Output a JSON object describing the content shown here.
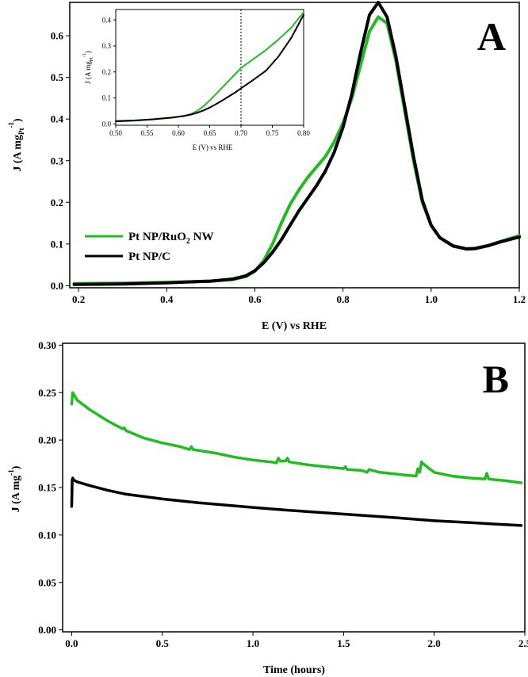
{
  "chart_data": [
    {
      "id": "A",
      "type": "line",
      "panel_label": "A",
      "xlabel": "E (V) vs RHE",
      "ylabel": "J (A mg",
      "ylabel_sub": "Pt",
      "ylabel_sup": "-1",
      "ylabel_close": ")",
      "xlim": [
        0.18,
        1.2
      ],
      "ylim": [
        -0.005,
        0.68
      ],
      "xticks": [
        "0.2",
        "0.4",
        "0.6",
        "0.8",
        "1.0",
        "1.2"
      ],
      "yticks": [
        "0.0",
        "0.1",
        "0.2",
        "0.3",
        "0.4",
        "0.5",
        "0.6"
      ],
      "legend": {
        "position": "left",
        "entries": [
          {
            "label": "Pt NP/RuO",
            "sub": "2",
            "suffix": " NW",
            "color": "#22bb22"
          },
          {
            "label": "Pt NP/C",
            "sub": "",
            "suffix": "",
            "color": "#000000"
          }
        ]
      },
      "series": [
        {
          "name": "Pt NP/RuO2 NW",
          "color": "#22bb22",
          "x": [
            0.19,
            0.3,
            0.4,
            0.5,
            0.55,
            0.58,
            0.6,
            0.62,
            0.64,
            0.66,
            0.68,
            0.7,
            0.72,
            0.74,
            0.76,
            0.78,
            0.8,
            0.82,
            0.84,
            0.86,
            0.88,
            0.9,
            0.92,
            0.94,
            0.96,
            0.98,
            1.0,
            1.02,
            1.05,
            1.08,
            1.1,
            1.13,
            1.16,
            1.2
          ],
          "y": [
            0.005,
            0.006,
            0.008,
            0.011,
            0.015,
            0.022,
            0.035,
            0.06,
            0.1,
            0.15,
            0.195,
            0.23,
            0.26,
            0.285,
            0.31,
            0.345,
            0.39,
            0.45,
            0.53,
            0.61,
            0.645,
            0.63,
            0.54,
            0.42,
            0.3,
            0.2,
            0.145,
            0.115,
            0.096,
            0.089,
            0.09,
            0.097,
            0.107,
            0.12
          ]
        },
        {
          "name": "Pt NP/C",
          "color": "#000000",
          "x": [
            0.19,
            0.3,
            0.4,
            0.5,
            0.55,
            0.58,
            0.6,
            0.62,
            0.64,
            0.66,
            0.68,
            0.7,
            0.72,
            0.74,
            0.76,
            0.78,
            0.8,
            0.82,
            0.84,
            0.86,
            0.88,
            0.9,
            0.92,
            0.94,
            0.96,
            0.98,
            1.0,
            1.02,
            1.05,
            1.08,
            1.1,
            1.13,
            1.16,
            1.2
          ],
          "y": [
            0.003,
            0.004,
            0.007,
            0.011,
            0.016,
            0.024,
            0.036,
            0.055,
            0.08,
            0.11,
            0.145,
            0.18,
            0.21,
            0.24,
            0.275,
            0.32,
            0.38,
            0.46,
            0.56,
            0.65,
            0.68,
            0.645,
            0.55,
            0.43,
            0.31,
            0.205,
            0.145,
            0.115,
            0.095,
            0.088,
            0.089,
            0.096,
            0.106,
            0.117
          ]
        }
      ]
    },
    {
      "id": "A-inset",
      "type": "line",
      "xlabel": "E (V) vs RHE",
      "ylabel": "J (A mg",
      "ylabel_sub": "Pt",
      "ylabel_sup": "-1",
      "ylabel_close": ")",
      "xlim": [
        0.5,
        0.8
      ],
      "ylim": [
        -0.005,
        0.44
      ],
      "xticks": [
        "0.50",
        "0.55",
        "0.60",
        "0.65",
        "0.70",
        "0.75",
        "0.80"
      ],
      "yticks": [
        "0.0",
        "0.1",
        "0.2",
        "0.3",
        "0.4"
      ],
      "vline_x": 0.7,
      "series": [
        {
          "name": "Pt NP/RuO2 NW",
          "color": "#22bb22",
          "x": [
            0.5,
            0.53,
            0.56,
            0.59,
            0.61,
            0.62,
            0.63,
            0.64,
            0.65,
            0.66,
            0.67,
            0.68,
            0.69,
            0.7,
            0.72,
            0.74,
            0.76,
            0.78,
            0.8
          ],
          "y": [
            0.012,
            0.014,
            0.018,
            0.024,
            0.032,
            0.038,
            0.05,
            0.068,
            0.09,
            0.115,
            0.14,
            0.165,
            0.19,
            0.215,
            0.25,
            0.285,
            0.325,
            0.37,
            0.43
          ]
        },
        {
          "name": "Pt NP/C",
          "color": "#000000",
          "x": [
            0.5,
            0.53,
            0.56,
            0.59,
            0.61,
            0.62,
            0.63,
            0.64,
            0.65,
            0.66,
            0.67,
            0.68,
            0.69,
            0.7,
            0.72,
            0.74,
            0.76,
            0.78,
            0.8
          ],
          "y": [
            0.01,
            0.013,
            0.018,
            0.025,
            0.031,
            0.036,
            0.043,
            0.052,
            0.063,
            0.076,
            0.09,
            0.105,
            0.12,
            0.137,
            0.17,
            0.205,
            0.26,
            0.33,
            0.42
          ]
        }
      ]
    },
    {
      "id": "B",
      "type": "line",
      "panel_label": "B",
      "xlabel": "Time (hours)",
      "ylabel": "J (A mg",
      "ylabel_sup": "-1",
      "ylabel_close": ")",
      "xlim": [
        -0.05,
        2.5
      ],
      "ylim": [
        -0.002,
        0.302
      ],
      "xticks": [
        "0.0",
        "0.5",
        "1.0",
        "1.5",
        "2.0",
        "2.5"
      ],
      "yticks": [
        "0.00",
        "0.05",
        "0.10",
        "0.15",
        "0.20",
        "0.25",
        "0.30"
      ],
      "series": [
        {
          "name": "Pt NP/RuO2 NW",
          "color": "#22bb22",
          "x": [
            0.0,
            0.005,
            0.015,
            0.03,
            0.1,
            0.2,
            0.28,
            0.29,
            0.3,
            0.4,
            0.5,
            0.6,
            0.65,
            0.66,
            0.67,
            0.8,
            0.9,
            1.0,
            1.1,
            1.13,
            1.14,
            1.15,
            1.18,
            1.19,
            1.2,
            1.3,
            1.4,
            1.5,
            1.51,
            1.52,
            1.6,
            1.63,
            1.64,
            1.7,
            1.8,
            1.9,
            1.91,
            1.92,
            1.93,
            1.94,
            1.96,
            2.0,
            2.1,
            2.2,
            2.28,
            2.29,
            2.3,
            2.4,
            2.48
          ],
          "y": [
            0.238,
            0.25,
            0.247,
            0.242,
            0.232,
            0.22,
            0.212,
            0.213,
            0.21,
            0.202,
            0.197,
            0.193,
            0.19,
            0.193,
            0.19,
            0.186,
            0.182,
            0.179,
            0.177,
            0.176,
            0.181,
            0.178,
            0.178,
            0.181,
            0.177,
            0.174,
            0.172,
            0.17,
            0.172,
            0.169,
            0.168,
            0.166,
            0.169,
            0.166,
            0.164,
            0.162,
            0.17,
            0.166,
            0.177,
            0.175,
            0.172,
            0.166,
            0.162,
            0.16,
            0.159,
            0.165,
            0.159,
            0.157,
            0.155
          ]
        },
        {
          "name": "Pt NP/C",
          "color": "#000000",
          "x": [
            0.0,
            0.003,
            0.006,
            0.01,
            0.03,
            0.1,
            0.2,
            0.3,
            0.5,
            0.7,
            1.0,
            1.2,
            1.5,
            1.8,
            2.0,
            2.2,
            2.48
          ],
          "y": [
            0.13,
            0.158,
            0.16,
            0.158,
            0.156,
            0.152,
            0.147,
            0.143,
            0.138,
            0.134,
            0.129,
            0.126,
            0.122,
            0.118,
            0.115,
            0.113,
            0.11
          ]
        }
      ]
    }
  ]
}
